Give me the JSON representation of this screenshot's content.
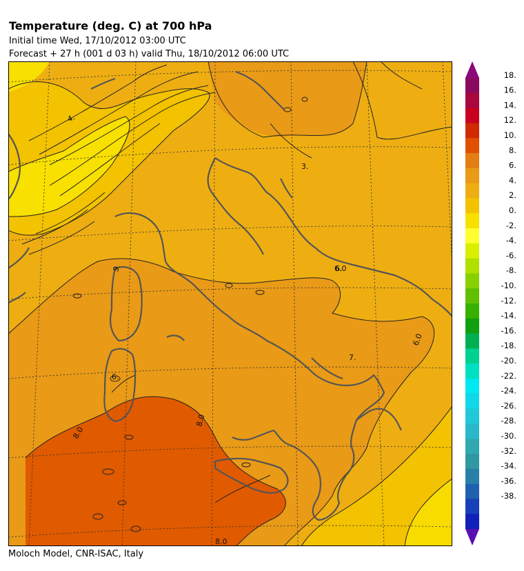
{
  "header": {
    "title": "Temperature (deg. C) at 700 hPa",
    "initial_time": "Initial time  Wed, 17/10/2012  03:00 UTC",
    "forecast": "Forecast  +  27 h  (001 d 03 h)  valid Thu, 18/10/2012 06:00 UTC"
  },
  "footer": {
    "credit": "Moloch Model, CNR-ISAC, Italy"
  },
  "map": {
    "variable": "Temperature at 700 hPa",
    "contour_labels": [
      "4.",
      "3.",
      "6.",
      "6.0",
      "6.0",
      "7.",
      "6.",
      "8.0",
      "8.0",
      "8.0",
      "9."
    ]
  },
  "legend": {
    "labels": [
      "18.",
      "16.",
      "14.",
      "12.",
      "10.",
      "8.",
      "6.",
      "4.",
      "2.",
      "0.",
      "-2.",
      "-4.",
      "-6.",
      "-8.",
      "-10.",
      "-12.",
      "-14.",
      "-16.",
      "-18.",
      "-20.",
      "-22.",
      "-24.",
      "-26.",
      "-28.",
      "-30.",
      "-32.",
      "-34.",
      "-36.",
      "-38."
    ],
    "colors": [
      "#8a0a5e",
      "#a8083e",
      "#c80020",
      "#d02a00",
      "#e05000",
      "#e37e12",
      "#e99a16",
      "#eeae12",
      "#f3c200",
      "#f8e000",
      "#ffff30",
      "#d8f000",
      "#b0e000",
      "#88d000",
      "#60c000",
      "#38b000",
      "#10a010",
      "#00b050",
      "#00d090",
      "#00e0c0",
      "#00e8f0",
      "#10d8e8",
      "#20c8d8",
      "#28b8c8",
      "#30a8b0",
      "#3098a0",
      "#2880a8",
      "#2060b0",
      "#1840b8",
      "#1020b8"
    ],
    "top_arrow_color": "#8a0a7a",
    "bottom_arrow_color": "#5a10b0"
  }
}
